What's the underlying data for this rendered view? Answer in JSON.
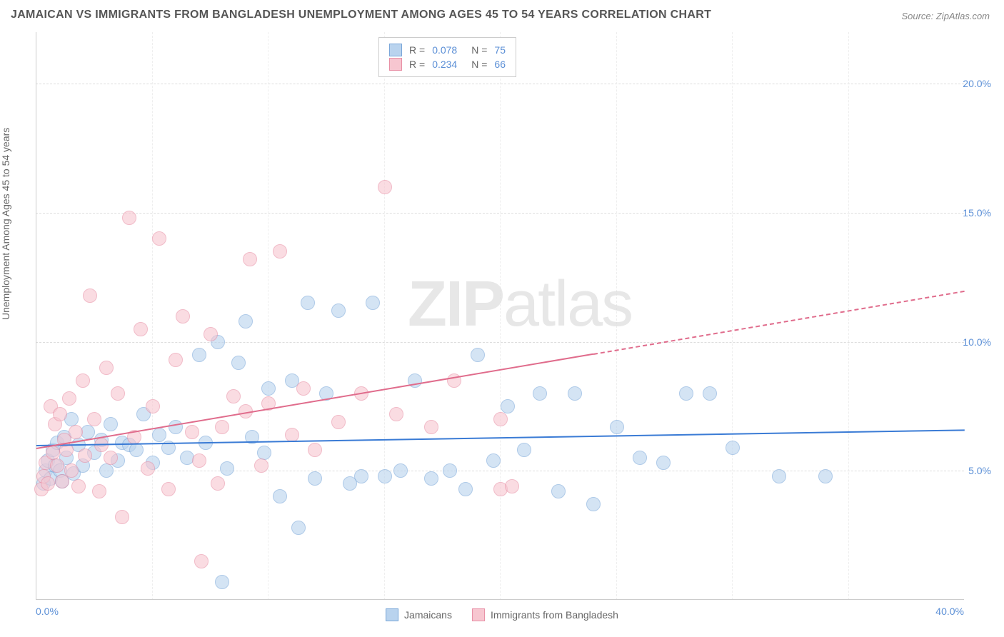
{
  "title": "JAMAICAN VS IMMIGRANTS FROM BANGLADESH UNEMPLOYMENT AMONG AGES 45 TO 54 YEARS CORRELATION CHART",
  "source": "Source: ZipAtlas.com",
  "y_axis_label": "Unemployment Among Ages 45 to 54 years",
  "watermark": {
    "bold": "ZIP",
    "light": "atlas"
  },
  "chart": {
    "type": "scatter",
    "xlim": [
      0,
      40
    ],
    "ylim": [
      0,
      22
    ],
    "x_ticks": [
      0,
      40
    ],
    "x_tick_labels": [
      "0.0%",
      "40.0%"
    ],
    "y_ticks": [
      5,
      10,
      15,
      20
    ],
    "y_tick_labels": [
      "5.0%",
      "10.0%",
      "15.0%",
      "20.0%"
    ],
    "x_minor_grid": [
      5,
      10,
      15,
      20,
      25,
      30,
      35
    ],
    "background_color": "#ffffff",
    "grid_color": "#dddddd",
    "axis_color": "#cccccc",
    "tick_label_color": "#5b8fd6",
    "title_fontsize": 16,
    "label_fontsize": 14,
    "point_radius": 10,
    "series": [
      {
        "name": "Jamaicans",
        "fill_color": "#b9d3ee",
        "stroke_color": "#7aa7d9",
        "fill_opacity": 0.6,
        "R": "0.078",
        "N": "75",
        "trend": {
          "x0": 0,
          "y0": 6.0,
          "x1": 40,
          "y1": 6.6,
          "color": "#3a7bd5",
          "width": 2,
          "dash_after_x": null
        },
        "points": [
          [
            0.3,
            4.5
          ],
          [
            0.4,
            5.0
          ],
          [
            0.5,
            5.4
          ],
          [
            0.6,
            4.7
          ],
          [
            0.7,
            5.8
          ],
          [
            0.8,
            5.2
          ],
          [
            0.9,
            6.1
          ],
          [
            1.0,
            5.0
          ],
          [
            1.1,
            4.6
          ],
          [
            1.2,
            6.3
          ],
          [
            1.3,
            5.5
          ],
          [
            1.5,
            7.0
          ],
          [
            1.6,
            4.9
          ],
          [
            1.8,
            6.0
          ],
          [
            2.0,
            5.2
          ],
          [
            2.2,
            6.5
          ],
          [
            2.5,
            5.7
          ],
          [
            2.8,
            6.2
          ],
          [
            3.0,
            5.0
          ],
          [
            3.2,
            6.8
          ],
          [
            3.5,
            5.4
          ],
          [
            3.7,
            6.1
          ],
          [
            4.0,
            6.0
          ],
          [
            4.3,
            5.8
          ],
          [
            4.6,
            7.2
          ],
          [
            5.0,
            5.3
          ],
          [
            5.3,
            6.4
          ],
          [
            5.7,
            5.9
          ],
          [
            6.0,
            6.7
          ],
          [
            6.5,
            5.5
          ],
          [
            7.0,
            9.5
          ],
          [
            7.3,
            6.1
          ],
          [
            7.8,
            10.0
          ],
          [
            8.0,
            0.7
          ],
          [
            8.2,
            5.1
          ],
          [
            8.7,
            9.2
          ],
          [
            9.0,
            10.8
          ],
          [
            9.3,
            6.3
          ],
          [
            9.8,
            5.7
          ],
          [
            10.0,
            8.2
          ],
          [
            10.5,
            4.0
          ],
          [
            11.0,
            8.5
          ],
          [
            11.3,
            2.8
          ],
          [
            11.7,
            11.5
          ],
          [
            12.0,
            4.7
          ],
          [
            12.5,
            8.0
          ],
          [
            13.0,
            11.2
          ],
          [
            13.5,
            4.5
          ],
          [
            14.0,
            4.8
          ],
          [
            14.5,
            11.5
          ],
          [
            15.0,
            4.8
          ],
          [
            15.7,
            5.0
          ],
          [
            16.3,
            8.5
          ],
          [
            17.0,
            4.7
          ],
          [
            17.8,
            5.0
          ],
          [
            18.5,
            4.3
          ],
          [
            19.0,
            9.5
          ],
          [
            19.7,
            5.4
          ],
          [
            20.3,
            7.5
          ],
          [
            21.0,
            5.8
          ],
          [
            21.7,
            8.0
          ],
          [
            22.5,
            4.2
          ],
          [
            23.2,
            8.0
          ],
          [
            24.0,
            3.7
          ],
          [
            25.0,
            6.7
          ],
          [
            26.0,
            5.5
          ],
          [
            27.0,
            5.3
          ],
          [
            28.0,
            8.0
          ],
          [
            29.0,
            8.0
          ],
          [
            30.0,
            5.9
          ],
          [
            32.0,
            4.8
          ],
          [
            34.0,
            4.8
          ]
        ]
      },
      {
        "name": "Immigrants from Bangladesh",
        "fill_color": "#f7c6d0",
        "stroke_color": "#e88fa5",
        "fill_opacity": 0.6,
        "R": "0.234",
        "N": "66",
        "trend": {
          "x0": 0,
          "y0": 5.9,
          "x1": 40,
          "y1": 12.0,
          "color": "#e06c8c",
          "width": 2,
          "dash_after_x": 24
        },
        "points": [
          [
            0.2,
            4.3
          ],
          [
            0.3,
            4.8
          ],
          [
            0.4,
            5.3
          ],
          [
            0.5,
            4.5
          ],
          [
            0.6,
            7.5
          ],
          [
            0.7,
            5.7
          ],
          [
            0.8,
            6.8
          ],
          [
            0.9,
            5.2
          ],
          [
            1.0,
            7.2
          ],
          [
            1.1,
            4.6
          ],
          [
            1.2,
            6.2
          ],
          [
            1.3,
            5.8
          ],
          [
            1.4,
            7.8
          ],
          [
            1.5,
            5.0
          ],
          [
            1.7,
            6.5
          ],
          [
            1.8,
            4.4
          ],
          [
            2.0,
            8.5
          ],
          [
            2.1,
            5.6
          ],
          [
            2.3,
            11.8
          ],
          [
            2.5,
            7.0
          ],
          [
            2.7,
            4.2
          ],
          [
            2.8,
            6.0
          ],
          [
            3.0,
            9.0
          ],
          [
            3.2,
            5.5
          ],
          [
            3.5,
            8.0
          ],
          [
            3.7,
            3.2
          ],
          [
            4.0,
            14.8
          ],
          [
            4.2,
            6.3
          ],
          [
            4.5,
            10.5
          ],
          [
            4.8,
            5.1
          ],
          [
            5.0,
            7.5
          ],
          [
            5.3,
            14.0
          ],
          [
            5.7,
            4.3
          ],
          [
            6.0,
            9.3
          ],
          [
            6.3,
            11.0
          ],
          [
            6.7,
            6.5
          ],
          [
            7.0,
            5.4
          ],
          [
            7.1,
            1.5
          ],
          [
            7.5,
            10.3
          ],
          [
            7.8,
            4.5
          ],
          [
            8.0,
            6.7
          ],
          [
            8.5,
            7.9
          ],
          [
            9.0,
            7.3
          ],
          [
            9.2,
            13.2
          ],
          [
            9.7,
            5.2
          ],
          [
            10.0,
            7.6
          ],
          [
            10.5,
            13.5
          ],
          [
            11.0,
            6.4
          ],
          [
            11.5,
            8.2
          ],
          [
            12.0,
            5.8
          ],
          [
            13.0,
            6.9
          ],
          [
            14.0,
            8.0
          ],
          [
            15.0,
            16.0
          ],
          [
            15.5,
            7.2
          ],
          [
            17.0,
            6.7
          ],
          [
            18.0,
            8.5
          ],
          [
            20.0,
            7.0
          ],
          [
            20.0,
            4.3
          ],
          [
            20.5,
            4.4
          ]
        ]
      }
    ]
  },
  "bottom_legend": [
    {
      "label": "Jamaicans",
      "fill": "#b9d3ee",
      "stroke": "#7aa7d9"
    },
    {
      "label": "Immigrants from Bangladesh",
      "fill": "#f7c6d0",
      "stroke": "#e88fa5"
    }
  ]
}
